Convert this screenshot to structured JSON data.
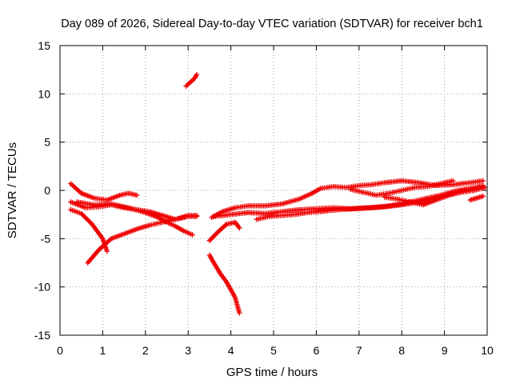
{
  "chart_data": {
    "type": "scatter",
    "title": "Day 089 of 2026, Sidereal Day-to-day VTEC variation (SDTVAR) for receiver bch1",
    "xlabel": "GPS time / hours",
    "ylabel": "SDTVAR / TECUs",
    "xlim": [
      0,
      10
    ],
    "ylim": [
      -15,
      15
    ],
    "xticks": [
      0,
      1,
      2,
      3,
      4,
      5,
      6,
      7,
      8,
      9,
      10
    ],
    "yticks": [
      15,
      10,
      5,
      0,
      -5,
      -10,
      -15
    ],
    "grid": true,
    "marker": "+",
    "color": "#ee0000",
    "series": [
      {
        "name": "arc-1",
        "x": [
          0.25,
          0.5,
          0.8,
          1.1,
          1.4,
          1.6,
          1.8
        ],
        "y": [
          0.7,
          -0.3,
          -0.8,
          -1.0,
          -0.5,
          -0.3,
          -0.5
        ]
      },
      {
        "name": "arc-2",
        "x": [
          0.25,
          0.6,
          0.9,
          1.2,
          1.5,
          1.8,
          2.1,
          2.4,
          2.7,
          3.0,
          3.2
        ],
        "y": [
          -1.2,
          -1.8,
          -1.7,
          -1.5,
          -1.8,
          -2.0,
          -2.2,
          -2.6,
          -3.0,
          -2.6,
          -2.6
        ]
      },
      {
        "name": "arc-3",
        "x": [
          0.25,
          0.5,
          0.75,
          1.0,
          1.1
        ],
        "y": [
          -2.0,
          -2.4,
          -3.5,
          -5.0,
          -6.3
        ]
      },
      {
        "name": "arc-4",
        "x": [
          0.65,
          0.9,
          1.2,
          1.5,
          1.8,
          2.1,
          2.4,
          2.7,
          3.0,
          3.2
        ],
        "y": [
          -7.5,
          -6.2,
          -5.0,
          -4.5,
          -4.0,
          -3.6,
          -3.3,
          -3.0,
          -2.7,
          -2.7
        ]
      },
      {
        "name": "arc-5",
        "x": [
          0.4,
          0.8,
          1.2,
          1.6,
          2.0,
          2.3,
          2.5,
          2.7,
          2.9,
          3.1
        ],
        "y": [
          -1.2,
          -1.5,
          -1.4,
          -1.8,
          -2.3,
          -2.8,
          -3.3,
          -3.7,
          -4.2,
          -4.6
        ]
      },
      {
        "name": "arc-6",
        "x": [
          2.95,
          3.05,
          3.15,
          3.2
        ],
        "y": [
          10.8,
          11.2,
          11.6,
          12.0
        ]
      },
      {
        "name": "arc-7",
        "x": [
          3.5,
          3.6,
          3.75,
          3.9,
          4.0,
          4.1,
          4.2
        ],
        "y": [
          -6.7,
          -7.5,
          -8.6,
          -9.5,
          -10.3,
          -11.1,
          -12.7
        ]
      },
      {
        "name": "arc-8",
        "x": [
          3.5,
          3.7,
          3.9,
          4.1,
          4.2
        ],
        "y": [
          -5.2,
          -4.3,
          -3.5,
          -3.3,
          -3.9
        ]
      },
      {
        "name": "arc-9",
        "x": [
          3.55,
          3.8,
          4.1,
          4.4,
          4.8,
          5.2,
          5.6,
          5.9,
          6.1,
          6.4,
          6.7,
          7.0,
          7.3,
          7.6,
          8.0,
          8.4,
          8.8,
          9.2,
          9.6,
          9.9
        ],
        "y": [
          -2.8,
          -2.2,
          -1.8,
          -1.6,
          -1.6,
          -1.4,
          -0.9,
          -0.3,
          0.2,
          0.4,
          0.3,
          0.5,
          0.6,
          0.8,
          1.0,
          0.8,
          0.5,
          0.6,
          0.8,
          1.0
        ]
      },
      {
        "name": "arc-10",
        "x": [
          3.6,
          4.0,
          4.4,
          4.8,
          5.2,
          5.6,
          6.0,
          6.4,
          6.8,
          7.2,
          7.6,
          8.0,
          8.4,
          8.8,
          9.2,
          9.6,
          9.9
        ],
        "y": [
          -2.7,
          -2.5,
          -2.3,
          -2.4,
          -2.2,
          -2.0,
          -1.9,
          -1.8,
          -1.9,
          -1.8,
          -1.7,
          -1.5,
          -1.2,
          -0.8,
          -0.3,
          0.2,
          0.5
        ]
      },
      {
        "name": "arc-11",
        "x": [
          4.6,
          4.9,
          5.2,
          5.5,
          5.8,
          6.1,
          6.5,
          6.9,
          7.3,
          7.7,
          8.1,
          8.5,
          8.9,
          9.3,
          9.6,
          9.9
        ],
        "y": [
          -3.0,
          -2.7,
          -2.6,
          -2.5,
          -2.3,
          -2.2,
          -2.0,
          -1.9,
          -1.8,
          -1.6,
          -1.3,
          -0.9,
          -0.5,
          0.0,
          0.2,
          0.4
        ]
      },
      {
        "name": "arc-12",
        "x": [
          6.8,
          7.1,
          7.4,
          7.7,
          8.0,
          8.3,
          8.6,
          8.9,
          9.2
        ],
        "y": [
          0.1,
          -0.2,
          -0.5,
          -0.3,
          0.0,
          0.3,
          0.4,
          0.7,
          1.0
        ]
      },
      {
        "name": "arc-13",
        "x": [
          7.6,
          7.9,
          8.2,
          8.5,
          8.8,
          9.1,
          9.4,
          9.7,
          9.95
        ],
        "y": [
          -0.7,
          -0.9,
          -1.2,
          -1.5,
          -1.0,
          -0.5,
          -0.2,
          0.0,
          0.3
        ]
      },
      {
        "name": "arc-14",
        "x": [
          9.6,
          9.75,
          9.9
        ],
        "y": [
          -1.0,
          -0.8,
          -0.6
        ]
      }
    ]
  }
}
